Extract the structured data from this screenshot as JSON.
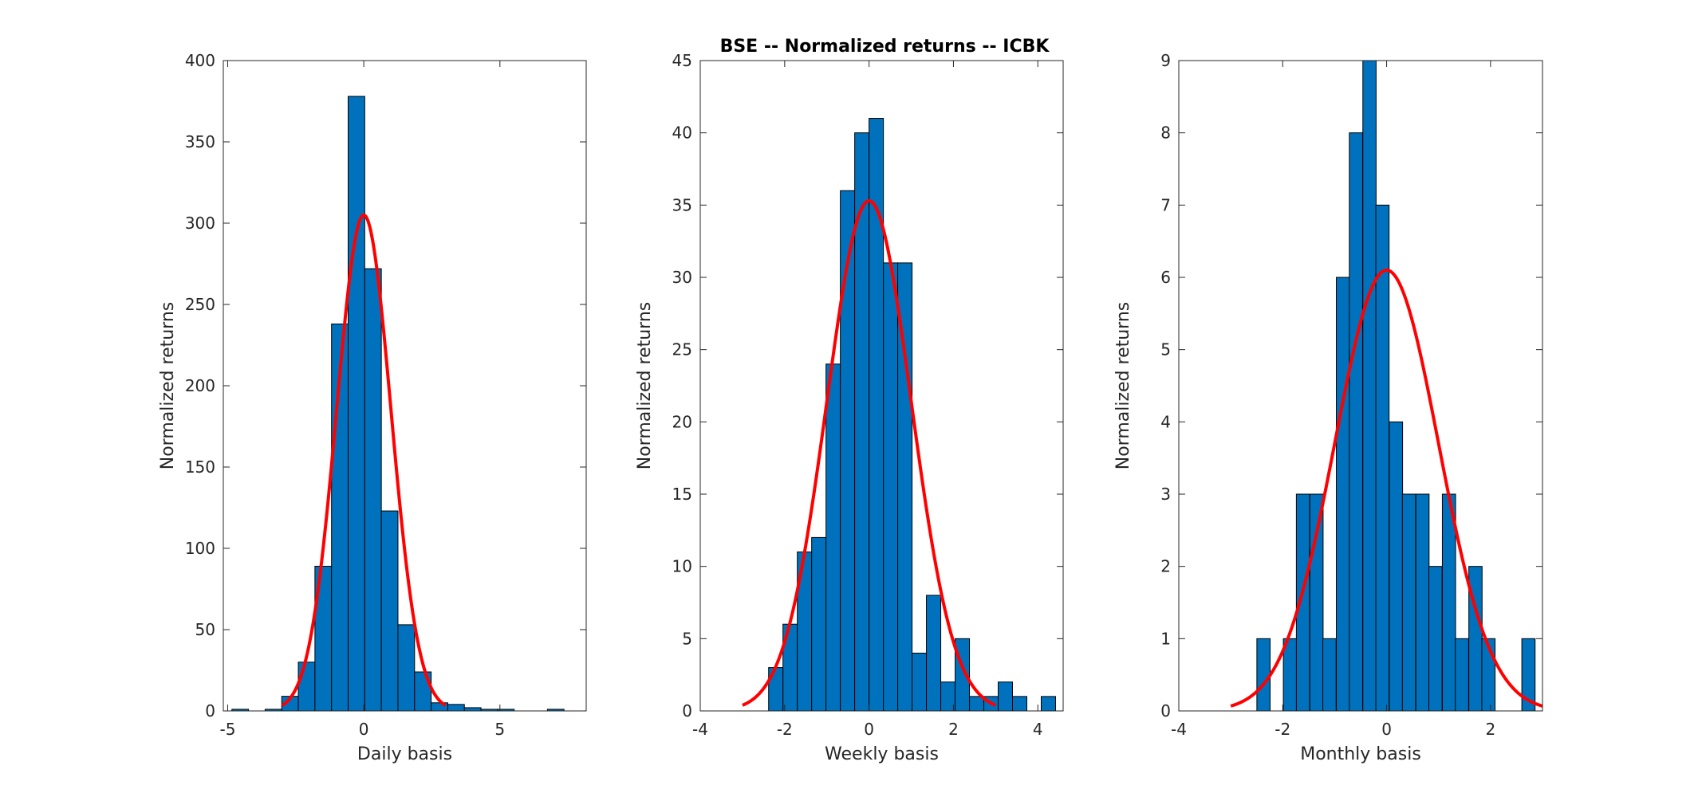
{
  "figure": {
    "title": "BSE -- Normalized returns -- ICBK",
    "bar_color": "#0072BD",
    "bar_edge_color": "#000000",
    "fit_color": "#FF0000"
  },
  "chart_data": [
    {
      "type": "bar",
      "subtype": "histogram",
      "title": "",
      "xlabel": "Daily basis",
      "ylabel": "Normalized returns",
      "xlim": [
        -5.16,
        8.17
      ],
      "ylim": [
        0,
        400
      ],
      "xticks": [
        -5,
        0,
        5
      ],
      "yticks": [
        0,
        50,
        100,
        150,
        200,
        250,
        300,
        350,
        400
      ],
      "bin_width": 0.61,
      "bins": [
        {
          "x": -4.54,
          "count": 1
        },
        {
          "x": -3.93,
          "count": 0
        },
        {
          "x": -3.32,
          "count": 1
        },
        {
          "x": -2.71,
          "count": 9
        },
        {
          "x": -2.1,
          "count": 30
        },
        {
          "x": -1.49,
          "count": 89
        },
        {
          "x": -0.88,
          "count": 238
        },
        {
          "x": -0.27,
          "count": 378
        },
        {
          "x": 0.34,
          "count": 272
        },
        {
          "x": 0.95,
          "count": 123
        },
        {
          "x": 1.56,
          "count": 53
        },
        {
          "x": 2.17,
          "count": 24
        },
        {
          "x": 2.78,
          "count": 5
        },
        {
          "x": 3.39,
          "count": 4
        },
        {
          "x": 4.0,
          "count": 2
        },
        {
          "x": 4.61,
          "count": 1
        },
        {
          "x": 5.22,
          "count": 1
        },
        {
          "x": 5.83,
          "count": 0
        },
        {
          "x": 6.44,
          "count": 0
        },
        {
          "x": 7.05,
          "count": 1
        }
      ],
      "fit": {
        "type": "normal",
        "mean": 0,
        "peak": 305,
        "sigma": 1,
        "x_range": [
          -3,
          3
        ]
      }
    },
    {
      "type": "bar",
      "subtype": "histogram",
      "title": "BSE -- Normalized returns -- ICBK",
      "xlabel": "Weekly basis",
      "ylabel": "Normalized returns",
      "xlim": [
        -4,
        4.6
      ],
      "ylim": [
        0,
        45
      ],
      "xticks": [
        -4,
        -2,
        0,
        2,
        4
      ],
      "yticks": [
        0,
        5,
        10,
        15,
        20,
        25,
        30,
        35,
        40,
        45
      ],
      "bin_width": 0.34,
      "bins": [
        {
          "x": -2.21,
          "count": 3
        },
        {
          "x": -1.87,
          "count": 6
        },
        {
          "x": -1.53,
          "count": 11
        },
        {
          "x": -1.19,
          "count": 12
        },
        {
          "x": -0.85,
          "count": 24
        },
        {
          "x": -0.51,
          "count": 36
        },
        {
          "x": -0.17,
          "count": 40
        },
        {
          "x": 0.17,
          "count": 41
        },
        {
          "x": 0.51,
          "count": 31
        },
        {
          "x": 0.85,
          "count": 31
        },
        {
          "x": 1.19,
          "count": 4
        },
        {
          "x": 1.53,
          "count": 8
        },
        {
          "x": 1.87,
          "count": 2
        },
        {
          "x": 2.21,
          "count": 5
        },
        {
          "x": 2.55,
          "count": 1
        },
        {
          "x": 2.89,
          "count": 1
        },
        {
          "x": 3.23,
          "count": 2
        },
        {
          "x": 3.57,
          "count": 1
        },
        {
          "x": 3.91,
          "count": 0
        },
        {
          "x": 4.25,
          "count": 1
        }
      ],
      "fit": {
        "type": "normal",
        "mean": 0,
        "peak": 35.3,
        "sigma": 1,
        "x_range": [
          -3,
          3
        ]
      }
    },
    {
      "type": "bar",
      "subtype": "histogram",
      "title": "",
      "xlabel": "Monthly basis",
      "ylabel": "Normalized returns",
      "xlim": [
        -4,
        3
      ],
      "ylim": [
        0,
        9
      ],
      "xticks": [
        -4,
        -2,
        0,
        2
      ],
      "yticks": [
        0,
        1,
        2,
        3,
        4,
        5,
        6,
        7,
        8,
        9
      ],
      "bin_width": 0.255,
      "bins": [
        {
          "x": -2.37,
          "count": 1
        },
        {
          "x": -2.12,
          "count": 0
        },
        {
          "x": -1.86,
          "count": 1
        },
        {
          "x": -1.61,
          "count": 3
        },
        {
          "x": -1.35,
          "count": 3
        },
        {
          "x": -1.1,
          "count": 1
        },
        {
          "x": -0.84,
          "count": 6
        },
        {
          "x": -0.59,
          "count": 8
        },
        {
          "x": -0.33,
          "count": 9
        },
        {
          "x": -0.08,
          "count": 7
        },
        {
          "x": 0.18,
          "count": 4
        },
        {
          "x": 0.43,
          "count": 3
        },
        {
          "x": 0.69,
          "count": 3
        },
        {
          "x": 0.94,
          "count": 2
        },
        {
          "x": 1.2,
          "count": 3
        },
        {
          "x": 1.45,
          "count": 1
        },
        {
          "x": 1.71,
          "count": 2
        },
        {
          "x": 1.96,
          "count": 1
        },
        {
          "x": 2.22,
          "count": 0
        },
        {
          "x": 2.47,
          "count": 0
        },
        {
          "x": 2.73,
          "count": 1
        }
      ],
      "fit": {
        "type": "normal",
        "mean": 0,
        "peak": 6.1,
        "sigma": 1,
        "x_range": [
          -3,
          3
        ]
      }
    }
  ]
}
